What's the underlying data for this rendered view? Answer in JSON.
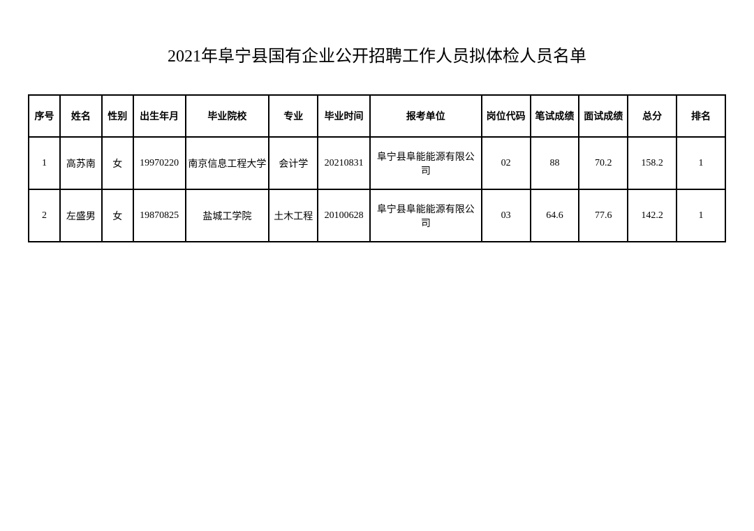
{
  "title": "2021年阜宁县国有企业公开招聘工作人员拟体检人员名单",
  "table": {
    "columns": [
      "序号",
      "姓名",
      "性别",
      "出生年月",
      "毕业院校",
      "专业",
      "毕业时间",
      "报考单位",
      "岗位代码",
      "笔试成绩",
      "面试成绩",
      "总分",
      "排名"
    ],
    "rows": [
      [
        "1",
        "高苏南",
        "女",
        "19970220",
        "南京信息工程大学",
        "会计学",
        "20210831",
        "阜宁县阜能能源有限公司",
        "02",
        "88",
        "70.2",
        "158.2",
        "1"
      ],
      [
        "2",
        "左盛男",
        "女",
        "19870825",
        "盐城工学院",
        "土木工程",
        "20100628",
        "阜宁县阜能能源有限公司",
        "03",
        "64.6",
        "77.6",
        "142.2",
        "1"
      ]
    ],
    "border_color": "#000000",
    "text_color": "#000000",
    "background_color": "#ffffff",
    "header_fontsize": 14,
    "cell_fontsize": 14,
    "title_fontsize": 24
  }
}
